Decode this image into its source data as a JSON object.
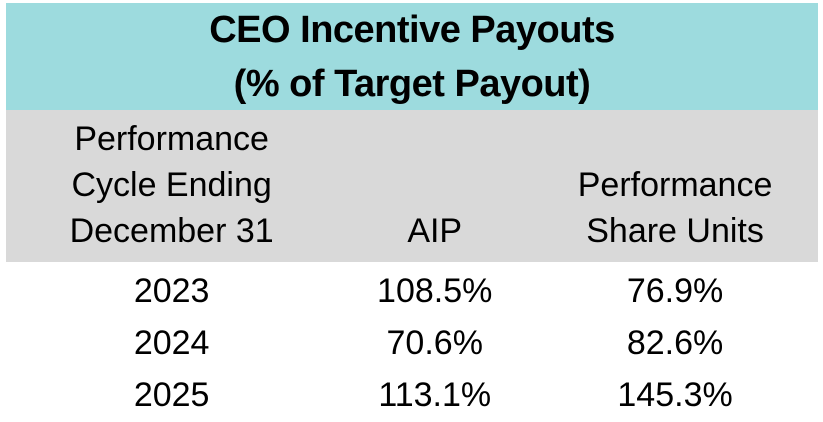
{
  "display": {
    "title_line1": "CEO Incentive Payouts",
    "title_line2": "(% of Target Payout)",
    "header": {
      "col1": [
        "Performance",
        "Cycle Ending",
        "December 31"
      ],
      "col2": "AIP",
      "col3": [
        "Performance",
        "Share Units"
      ]
    }
  },
  "chart_data": {
    "type": "table",
    "title": "CEO Incentive Payouts (% of Target Payout)",
    "columns": [
      "Performance Cycle Ending December 31",
      "AIP",
      "Performance Share Units"
    ],
    "categories": [
      "2023",
      "2024",
      "2025"
    ],
    "series": [
      {
        "name": "AIP",
        "values": [
          108.5,
          70.6,
          113.1
        ]
      },
      {
        "name": "Performance Share Units",
        "values": [
          76.9,
          82.6,
          145.3
        ]
      }
    ],
    "rows": [
      [
        "2023",
        "108.5%",
        "76.9%"
      ],
      [
        "2024",
        "70.6%",
        "82.6%"
      ],
      [
        "2025",
        "113.1%",
        "145.3%"
      ]
    ]
  },
  "colors": {
    "title_bg": "#9DDBDE",
    "header_bg": "#D9D9D9",
    "text": "#000000",
    "page_bg": "#FFFFFF"
  }
}
